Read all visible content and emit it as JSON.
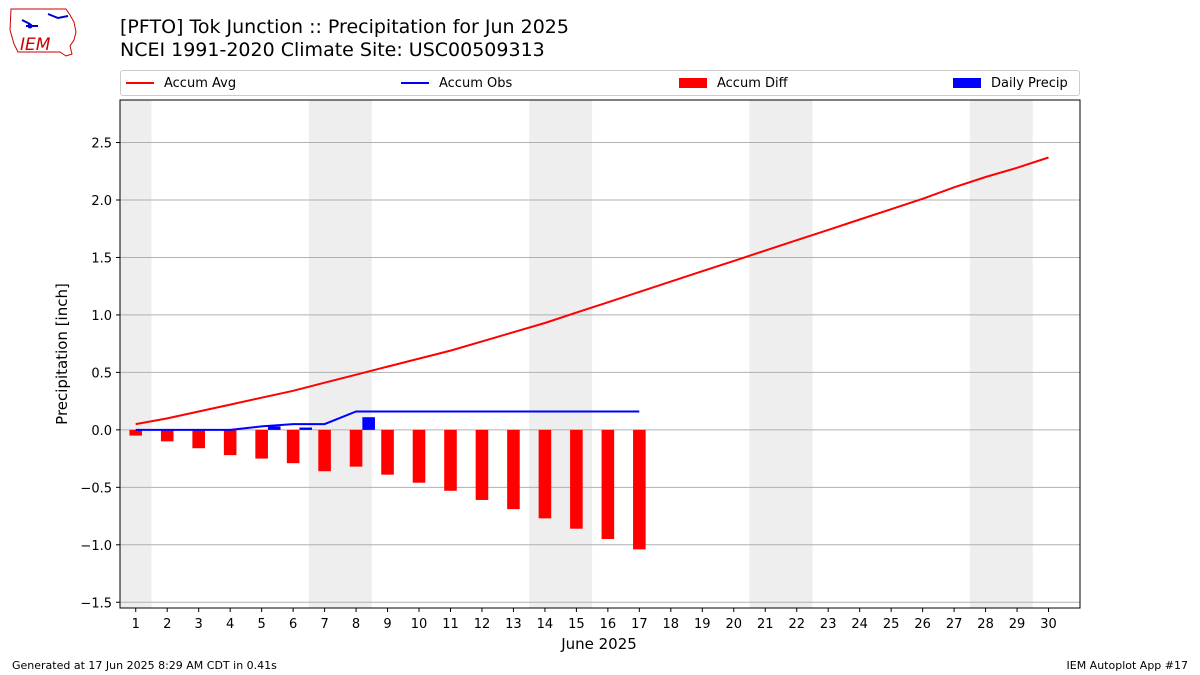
{
  "header": {
    "title": "[PFTO] Tok Junction :: Precipitation for Jun 2025",
    "subtitle": "NCEI 1991-2020 Climate Site: USC00509313",
    "logo_text": "IEM"
  },
  "footer": {
    "left": "Generated at 17 Jun 2025 8:29 AM CDT in 0.41s",
    "right": "IEM Autoplot App #17"
  },
  "colors": {
    "avg": "#ff0000",
    "obs": "#0000ff",
    "diff": "#ff0000",
    "daily": "#0000ff",
    "weekend_band": "#eeeeee",
    "grid": "#b0b0b0"
  },
  "legend": {
    "items": [
      {
        "label": "Accum Avg",
        "kind": "line",
        "color": "#ff0000"
      },
      {
        "label": "Accum Obs",
        "kind": "line",
        "color": "#0000ff"
      },
      {
        "label": "Accum Diff",
        "kind": "bar",
        "color": "#ff0000"
      },
      {
        "label": "Daily Precip",
        "kind": "bar",
        "color": "#0000ff"
      }
    ]
  },
  "chart_data": {
    "type": "bar",
    "xlabel": "June 2025",
    "ylabel": "Precipitation [inch]",
    "ylim": [
      -1.55,
      2.87
    ],
    "xlim": [
      0.5,
      31.0
    ],
    "yticks": [
      -1.5,
      -1.0,
      -0.5,
      0.0,
      0.5,
      1.0,
      1.5,
      2.0,
      2.5
    ],
    "ytick_labels": [
      "−1.5",
      "−1.0",
      "−0.5",
      "0.0",
      "0.5",
      "1.0",
      "1.5",
      "2.0",
      "2.5"
    ],
    "days": [
      1,
      2,
      3,
      4,
      5,
      6,
      7,
      8,
      9,
      10,
      11,
      12,
      13,
      14,
      15,
      16,
      17,
      18,
      19,
      20,
      21,
      22,
      23,
      24,
      25,
      26,
      27,
      28,
      29,
      30
    ],
    "day_labels": [
      "1",
      "2",
      "3",
      "4",
      "5",
      "6",
      "7",
      "8",
      "9",
      "10",
      "11",
      "12",
      "13",
      "14",
      "15",
      "16",
      "17",
      "18",
      "19",
      "20",
      "21",
      "22",
      "23",
      "24",
      "25",
      "26",
      "27",
      "28",
      "29",
      "30"
    ],
    "weekend_days": [
      1,
      7,
      8,
      14,
      15,
      21,
      22,
      28,
      29
    ],
    "grid": true,
    "legend_position": "top",
    "series": [
      {
        "name": "Accum Avg",
        "kind": "line",
        "values": [
          0.05,
          0.1,
          0.16,
          0.22,
          0.28,
          0.34,
          0.41,
          0.48,
          0.55,
          0.62,
          0.69,
          0.77,
          0.85,
          0.93,
          1.02,
          1.11,
          1.2,
          1.29,
          1.38,
          1.47,
          1.56,
          1.65,
          1.74,
          1.83,
          1.92,
          2.01,
          2.11,
          2.2,
          2.28,
          2.37
        ]
      },
      {
        "name": "Accum Obs",
        "kind": "line",
        "values": [
          0.0,
          0.0,
          0.0,
          0.0,
          0.03,
          0.05,
          0.05,
          0.16,
          0.16,
          0.16,
          0.16,
          0.16,
          0.16,
          0.16,
          0.16,
          0.16,
          0.16
        ]
      },
      {
        "name": "Accum Diff",
        "kind": "bar",
        "values": [
          -0.05,
          -0.1,
          -0.16,
          -0.22,
          -0.25,
          -0.29,
          -0.36,
          -0.32,
          -0.39,
          -0.46,
          -0.53,
          -0.61,
          -0.69,
          -0.77,
          -0.86,
          -0.95,
          -1.04
        ]
      },
      {
        "name": "Daily Precip",
        "kind": "bar",
        "values": [
          0.0,
          0.0,
          0.0,
          0.0,
          0.03,
          0.02,
          0.0,
          0.11,
          0.0,
          0.0,
          0.0,
          0.0,
          0.0,
          0.0,
          0.0,
          0.0,
          0.0
        ]
      }
    ]
  }
}
